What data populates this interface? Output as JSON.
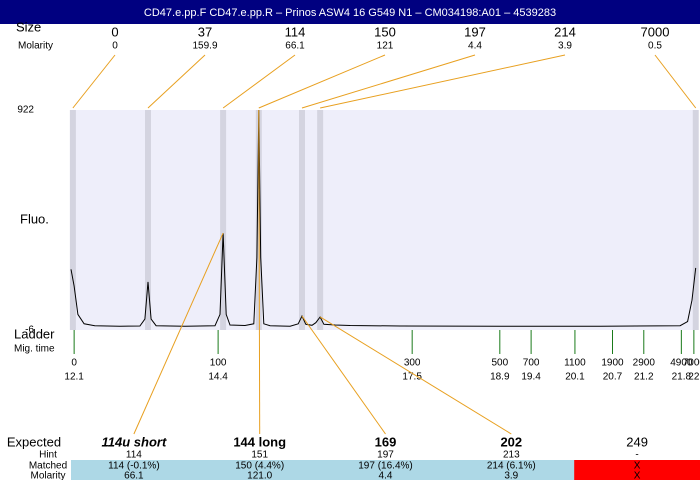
{
  "title": "CD47.e.pp.F  CD47.e.pp.R – Prinos ASW4 16 G549 N1 – CM034198:A01 – 4539283",
  "sizes": {
    "label": "Size",
    "molarity_label": "Molarity",
    "columns": [
      {
        "size": 0,
        "molarity": 0,
        "time": 12.08
      },
      {
        "size": 37,
        "molarity": 159.9,
        "time": 13.28
      },
      {
        "size": 114,
        "molarity": 66.1,
        "time": 14.48
      },
      {
        "size": 150,
        "molarity": 121,
        "time": 15.05
      },
      {
        "size": 197,
        "molarity": 4.4,
        "time": 15.74
      },
      {
        "size": 214,
        "molarity": 3.9,
        "time": 16.03
      },
      {
        "size": 7000,
        "molarity": 0.5,
        "time": 22.03
      }
    ]
  },
  "plot": {
    "y_label": "Fluo.",
    "xlim": [
      12.05,
      22.05
    ],
    "ylim": [
      -6,
      922
    ],
    "yticks": [
      922,
      -6
    ],
    "background": "#eeeefa",
    "band_color": "#d4d4e0",
    "line_color": "#000000",
    "trace": {
      "time": [
        12.05,
        12.1,
        12.16,
        12.26,
        12.43,
        12.83,
        13.15,
        13.23,
        13.28,
        13.33,
        13.41,
        13.87,
        14.35,
        14.43,
        14.48,
        14.53,
        14.59,
        14.83,
        14.97,
        15.02,
        15.05,
        15.08,
        15.13,
        15.23,
        15.55,
        15.68,
        15.74,
        15.8,
        15.9,
        15.96,
        16.03,
        16.09,
        16.27,
        16.51,
        17.31,
        18.9,
        20.5,
        21.78,
        21.9,
        21.97,
        22.03
      ],
      "fluo": [
        250,
        180,
        60,
        20,
        12,
        10,
        11,
        40,
        197,
        40,
        12,
        10,
        12,
        60,
        403,
        60,
        15,
        13,
        20,
        300,
        922,
        300,
        20,
        12,
        10,
        20,
        53,
        18,
        14,
        25,
        49,
        18,
        15,
        13,
        11,
        10,
        10,
        12,
        30,
        120,
        256
      ]
    }
  },
  "ladder": {
    "label": "Ladder",
    "time_label": "Mig. time",
    "color": "#1a7a1a",
    "items": [
      {
        "size": 0,
        "time": 12.1
      },
      {
        "size": 100,
        "time": 14.4
      },
      {
        "size": 300,
        "time": 17.5
      },
      {
        "size": 500,
        "time": 18.9
      },
      {
        "size": 700,
        "time": 19.4
      },
      {
        "size": 1100,
        "time": 20.1
      },
      {
        "size": 1900,
        "time": 20.7
      },
      {
        "size": 2900,
        "time": 21.2
      },
      {
        "size": 4900,
        "time": 21.8
      },
      {
        "size": 7000,
        "time": 22
      }
    ]
  },
  "connector_color": "#e8a020",
  "results": {
    "row_labels": [
      "Expected",
      "Hint",
      "Matched",
      "Molarity"
    ],
    "columns": [
      {
        "expected": "114u short",
        "font_style": "italic",
        "font_weight": "bold",
        "hint": "114",
        "matched": "114 (-0.1%)",
        "molarity": "66.1",
        "color": "#add8e6"
      },
      {
        "expected": "144 long",
        "font_style": "normal",
        "font_weight": "bold",
        "hint": "151",
        "matched": "150 (4.4%)",
        "molarity": "121.0",
        "color": "#add8e6"
      },
      {
        "expected": "169",
        "font_style": "normal",
        "font_weight": "bold",
        "hint": "197",
        "matched": "197 (16.4%)",
        "molarity": "4.4",
        "color": "#add8e6"
      },
      {
        "expected": "202",
        "font_style": "normal",
        "font_weight": "bold",
        "hint": "213",
        "matched": "214 (6.1%)",
        "molarity": "3.9",
        "color": "#add8e6"
      },
      {
        "expected": "249",
        "font_style": "normal",
        "font_weight": "normal",
        "hint": "-",
        "matched": "X",
        "molarity": "X",
        "color": "#ff0000"
      }
    ]
  }
}
